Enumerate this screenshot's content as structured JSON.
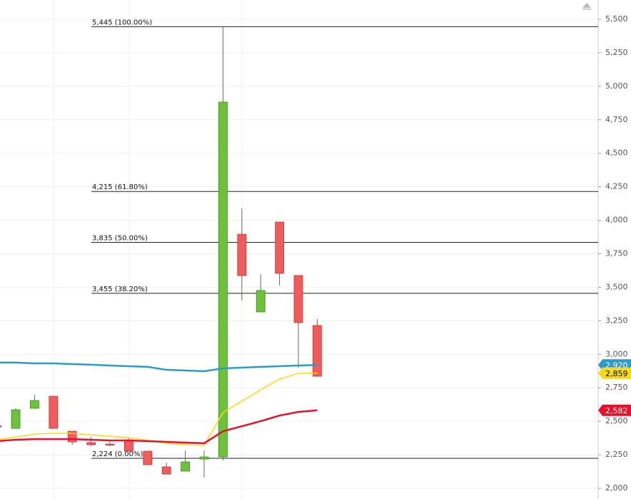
{
  "chart_data": {
    "type": "candlestick",
    "categories": [
      null,
      null,
      null,
      null,
      null,
      null,
      null,
      null,
      null,
      null,
      null,
      null,
      null,
      null,
      null,
      null,
      null,
      null
    ],
    "open": [
      2466,
      2447,
      2597,
      2687,
      2426,
      2341,
      2330,
      2362,
      2277,
      2160,
      2128,
      2218,
      2234,
      3896,
      3316,
      3987,
      3588,
      3215
    ],
    "high": [
      2470,
      2597,
      2698,
      2690,
      2426,
      2383,
      2351,
      2373,
      2277,
      2192,
      2282,
      2282,
      5445,
      4088,
      3598,
      3987,
      3588,
      3262
    ],
    "low": [
      2461,
      2447,
      2597,
      2447,
      2325,
      2314,
      2314,
      2277,
      2176,
      2106,
      2128,
      2080,
      2208,
      3401,
      3316,
      3513,
      2900,
      2836
    ],
    "close": [
      2461,
      2586,
      2655,
      2447,
      2346,
      2325,
      2325,
      2277,
      2176,
      2106,
      2197,
      2234,
      4882,
      3587,
      3476,
      3604,
      3236,
      2836
    ],
    "up_color": "#6cc23a",
    "down_color": "#f05b5b",
    "lines": [
      {
        "color": "#2e9bc6",
        "values": [
          2938,
          2938,
          2932,
          2932,
          2927,
          2922,
          2916,
          2911,
          2906,
          2884,
          2879,
          2874,
          2895,
          2900,
          2906,
          2911,
          2916,
          2920
        ]
      },
      {
        "color": "#f7dc13",
        "values": [
          2362,
          2383,
          2405,
          2410,
          2410,
          2399,
          2389,
          2378,
          2357,
          2336,
          2325,
          2320,
          2565,
          2650,
          2735,
          2815,
          2858,
          2859
        ]
      },
      {
        "color": "#e8112d",
        "values": [
          2352,
          2362,
          2367,
          2367,
          2367,
          2362,
          2357,
          2357,
          2352,
          2346,
          2341,
          2336,
          2426,
          2463,
          2501,
          2543,
          2570,
          2582
        ]
      }
    ],
    "levels": [
      {
        "value": 5445,
        "label": "5,445 (100.00%)"
      },
      {
        "value": 4215,
        "label": "4,215 (61.80%)"
      },
      {
        "value": 3835,
        "label": "3,835 (50.00%)"
      },
      {
        "value": 3455,
        "label": "3,455 (38.20%)"
      },
      {
        "value": 2224,
        "label": "2,224 (0.00%)"
      }
    ],
    "price_tags": [
      {
        "value": 2920,
        "label": "2,920",
        "color": "#2e9bc6"
      },
      {
        "value": 2859,
        "label": "2,859",
        "color": "#f7dc13"
      },
      {
        "value": 2582,
        "label": "2,582",
        "color": "#e8112d"
      }
    ],
    "ylim": [
      2000,
      5500
    ],
    "yticks": [
      {
        "value": 2000,
        "label": "2,000"
      },
      {
        "value": 2250,
        "label": "2,250"
      },
      {
        "value": 2500,
        "label": "2,500"
      },
      {
        "value": 2750,
        "label": "2,750"
      },
      {
        "value": 3000,
        "label": "3,000"
      },
      {
        "value": 3250,
        "label": "3,250"
      },
      {
        "value": 3500,
        "label": "3,500"
      },
      {
        "value": 3750,
        "label": "3,750"
      },
      {
        "value": 4000,
        "label": "4,000"
      },
      {
        "value": 4250,
        "label": "4,250"
      },
      {
        "value": 4500,
        "label": "4,500"
      },
      {
        "value": 4750,
        "label": "4,750"
      },
      {
        "value": 5000,
        "label": "5,000"
      },
      {
        "value": 5250,
        "label": "5,250"
      },
      {
        "value": 5500,
        "label": "5,500"
      }
    ],
    "grid": true
  }
}
